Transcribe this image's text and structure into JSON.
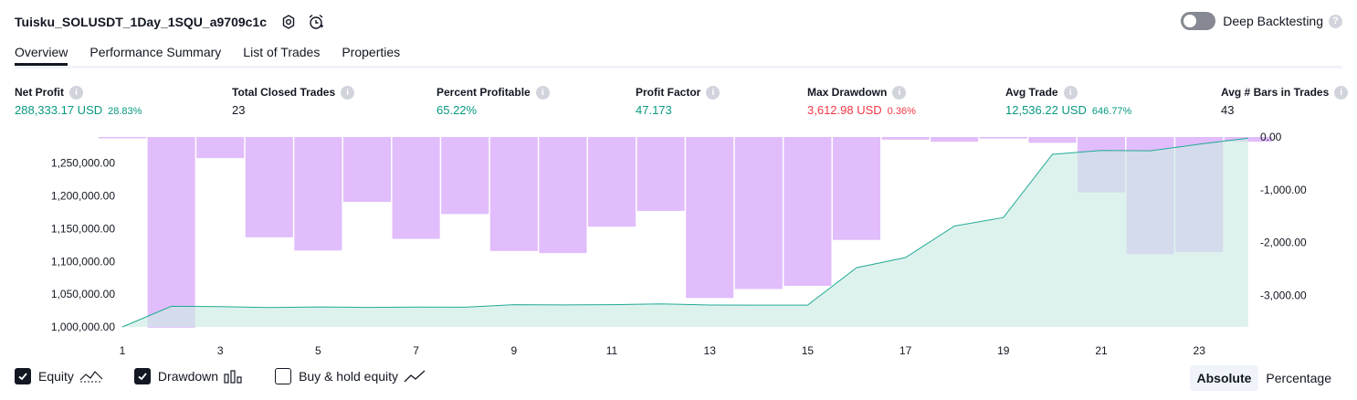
{
  "strategy": {
    "name": "Tuisku_SOLUSDT_1Day_1SQU_a9709c1c"
  },
  "deep_backtesting": {
    "label": "Deep Backtesting",
    "enabled": false,
    "help": "?"
  },
  "tabs": [
    {
      "label": "Overview",
      "active": true
    },
    {
      "label": "Performance Summary",
      "active": false
    },
    {
      "label": "List of Trades",
      "active": false
    },
    {
      "label": "Properties",
      "active": false
    }
  ],
  "metrics": [
    {
      "label": "Net Profit",
      "value": "288,333.17 USD",
      "pct": "28.83%",
      "color": "green"
    },
    {
      "label": "Total Closed Trades",
      "value": "23",
      "pct": "",
      "color": "dark"
    },
    {
      "label": "Percent Profitable",
      "value": "65.22%",
      "pct": "",
      "color": "green"
    },
    {
      "label": "Profit Factor",
      "value": "47.173",
      "pct": "",
      "color": "green"
    },
    {
      "label": "Max Drawdown",
      "value": "3,612.98 USD",
      "pct": "0.36%",
      "color": "red"
    },
    {
      "label": "Avg Trade",
      "value": "12,536.22 USD",
      "pct": "646.77%",
      "color": "green"
    },
    {
      "label": "Avg # Bars in Trades",
      "value": "43",
      "pct": "",
      "color": "dark"
    }
  ],
  "info_glyph": "i",
  "chart_data": {
    "type": "bar+area",
    "x_ticks": [
      "1",
      "3",
      "5",
      "7",
      "9",
      "11",
      "13",
      "15",
      "17",
      "19",
      "21",
      "23"
    ],
    "left_axis_ticks": [
      "1,250,000.00",
      "1,200,000.00",
      "1,150,000.00",
      "1,100,000.00",
      "1,050,000.00",
      "1,000,000.00"
    ],
    "right_axis_ticks": [
      "0.00",
      "-1,000.00",
      "-2,000.00",
      "-3,000.00"
    ],
    "equity_ylim": [
      1000000,
      1288333.17
    ],
    "drawdown_ylim": [
      -3612.98,
      0
    ],
    "equity": {
      "name": "Equity",
      "x": [
        1,
        2,
        3,
        4,
        5,
        6,
        7,
        8,
        9,
        10,
        11,
        12,
        13,
        14,
        15,
        16,
        17,
        18,
        19,
        20,
        21,
        22,
        23,
        24
      ],
      "values": [
        1000000,
        1031500,
        1031000,
        1029500,
        1030500,
        1029800,
        1030200,
        1030100,
        1034000,
        1033600,
        1034000,
        1035200,
        1033500,
        1033300,
        1033300,
        1090500,
        1106000,
        1154000,
        1167000,
        1263500,
        1269500,
        1269000,
        1279000,
        1288333.17
      ]
    },
    "drawdown": {
      "name": "Drawdown",
      "x": [
        1,
        2,
        3,
        4,
        5,
        6,
        7,
        8,
        9,
        10,
        11,
        12,
        13,
        14,
        15,
        16,
        17,
        18,
        19,
        20,
        21,
        22,
        23,
        24
      ],
      "values": [
        -20,
        -3612.98,
        -400,
        -1900,
        -2150,
        -1230,
        -1930,
        -1460,
        -2160,
        -2200,
        -1700,
        -1400,
        -3050,
        -2880,
        -2820,
        -1950,
        -50,
        -90,
        -30,
        -110,
        -1050,
        -2220,
        -2180,
        -90
      ]
    },
    "colors": {
      "equity_line": "#22ab94",
      "equity_fill": "#cdebe3",
      "drawdown_bar": "#e1bdfb"
    }
  },
  "legend": [
    {
      "label": "Equity",
      "checked": true,
      "icon": "equity-line-icon"
    },
    {
      "label": "Drawdown",
      "checked": true,
      "icon": "drawdown-bars-icon"
    },
    {
      "label": "Buy & hold equity",
      "checked": false,
      "icon": "buy-hold-line-icon"
    }
  ],
  "mode": [
    {
      "label": "Absolute",
      "active": true
    },
    {
      "label": "Percentage",
      "active": false
    }
  ]
}
